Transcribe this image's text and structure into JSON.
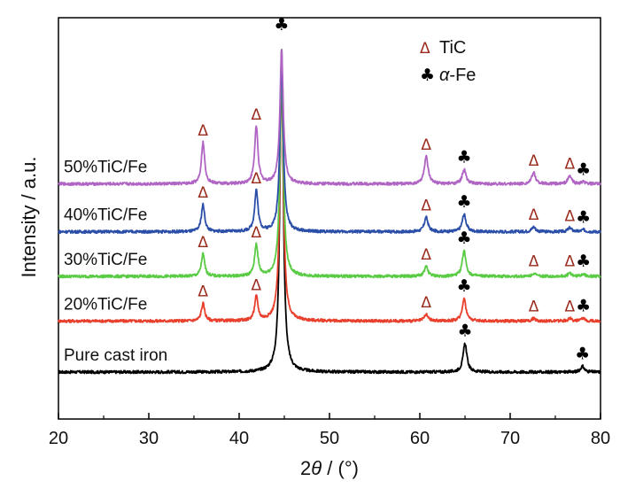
{
  "chart_data": {
    "type": "line",
    "xlabel_prefix": "2",
    "xlabel_theta": "θ",
    "xlabel_suffix": " / (°)",
    "ylabel": "Intensity / a.u.",
    "xlim": [
      20,
      80
    ],
    "xticks": [
      20,
      30,
      40,
      50,
      60,
      70,
      80
    ],
    "y_ticks_shown": false,
    "legend": {
      "position": "top-right",
      "items": [
        {
          "symbol": "Δ",
          "label": "TiC",
          "color": "#9a2a1c"
        },
        {
          "symbol": "♣",
          "label_italic": "α",
          "label_rest": "-Fe",
          "color": "#000000"
        }
      ]
    },
    "series": [
      {
        "name": "Pure cast iron",
        "color": "#000000",
        "baseline": 0,
        "peaks": [
          {
            "x": 44.7,
            "h": 10.2,
            "w": 0.22
          },
          {
            "x": 65.0,
            "h": 0.9,
            "w": 0.25
          },
          {
            "x": 78.0,
            "h": 0.18,
            "w": 0.25
          }
        ],
        "markers": [
          {
            "x": 65.0,
            "type": "club",
            "h": 0.9
          },
          {
            "x": 78.0,
            "type": "club",
            "h": 0.18
          }
        ]
      },
      {
        "name": "20%TiC/Fe",
        "color": "#e8402c",
        "baseline": 1.6,
        "peaks": [
          {
            "x": 36.0,
            "h": 0.55,
            "w": 0.22
          },
          {
            "x": 41.9,
            "h": 0.75,
            "w": 0.22
          },
          {
            "x": 44.7,
            "h": 8.0,
            "w": 0.22
          },
          {
            "x": 60.7,
            "h": 0.2,
            "w": 0.25
          },
          {
            "x": 64.9,
            "h": 0.7,
            "w": 0.25
          },
          {
            "x": 72.6,
            "h": 0.08,
            "w": 0.25
          },
          {
            "x": 76.6,
            "h": 0.08,
            "w": 0.25
          },
          {
            "x": 78.1,
            "h": 0.08,
            "w": 0.25
          }
        ],
        "markers": [
          {
            "x": 36.0,
            "type": "delta",
            "h": 0.55
          },
          {
            "x": 41.9,
            "type": "delta",
            "h": 0.75
          },
          {
            "x": 60.7,
            "type": "delta",
            "h": 0.2
          },
          {
            "x": 64.9,
            "type": "club",
            "h": 0.7
          },
          {
            "x": 72.6,
            "type": "delta",
            "h": 0.08
          },
          {
            "x": 76.6,
            "type": "delta",
            "h": 0.08
          },
          {
            "x": 78.1,
            "type": "club",
            "h": 0.08
          }
        ]
      },
      {
        "name": "30%TiC/Fe",
        "color": "#5acb45",
        "baseline": 3.0,
        "peaks": [
          {
            "x": 36.0,
            "h": 0.7,
            "w": 0.22
          },
          {
            "x": 41.9,
            "h": 1.0,
            "w": 0.22
          },
          {
            "x": 44.7,
            "h": 6.5,
            "w": 0.22
          },
          {
            "x": 60.7,
            "h": 0.3,
            "w": 0.25
          },
          {
            "x": 64.9,
            "h": 0.8,
            "w": 0.25
          },
          {
            "x": 72.6,
            "h": 0.1,
            "w": 0.25
          },
          {
            "x": 76.6,
            "h": 0.1,
            "w": 0.25
          },
          {
            "x": 78.1,
            "h": 0.08,
            "w": 0.25
          }
        ],
        "markers": [
          {
            "x": 36.0,
            "type": "delta",
            "h": 0.7
          },
          {
            "x": 41.9,
            "type": "delta",
            "h": 1.0
          },
          {
            "x": 60.7,
            "type": "delta",
            "h": 0.3
          },
          {
            "x": 64.9,
            "type": "club",
            "h": 0.8
          },
          {
            "x": 72.6,
            "type": "delta",
            "h": 0.1
          },
          {
            "x": 76.6,
            "type": "delta",
            "h": 0.1
          },
          {
            "x": 78.1,
            "type": "club",
            "h": 0.08
          }
        ]
      },
      {
        "name": "40%TiC/Fe",
        "color": "#2b4ea8",
        "baseline": 4.4,
        "peaks": [
          {
            "x": 36.0,
            "h": 0.85,
            "w": 0.22
          },
          {
            "x": 41.9,
            "h": 1.3,
            "w": 0.22
          },
          {
            "x": 44.7,
            "h": 5.4,
            "w": 0.22
          },
          {
            "x": 60.7,
            "h": 0.45,
            "w": 0.25
          },
          {
            "x": 64.9,
            "h": 0.55,
            "w": 0.25
          },
          {
            "x": 72.6,
            "h": 0.15,
            "w": 0.25
          },
          {
            "x": 76.6,
            "h": 0.12,
            "w": 0.25
          },
          {
            "x": 78.1,
            "h": 0.06,
            "w": 0.25
          }
        ],
        "markers": [
          {
            "x": 36.0,
            "type": "delta",
            "h": 0.85
          },
          {
            "x": 41.9,
            "type": "delta",
            "h": 1.3
          },
          {
            "x": 60.7,
            "type": "delta",
            "h": 0.45
          },
          {
            "x": 64.9,
            "type": "club",
            "h": 0.55
          },
          {
            "x": 72.6,
            "type": "delta",
            "h": 0.15
          },
          {
            "x": 76.6,
            "type": "delta",
            "h": 0.12
          },
          {
            "x": 78.1,
            "type": "club",
            "h": 0.06
          }
        ]
      },
      {
        "name": "50%TiC/Fe",
        "color": "#b065c4",
        "baseline": 5.9,
        "peaks": [
          {
            "x": 36.0,
            "h": 1.3,
            "w": 0.22
          },
          {
            "x": 41.9,
            "h": 1.8,
            "w": 0.22
          },
          {
            "x": 44.7,
            "h": 4.2,
            "w": 0.22
          },
          {
            "x": 60.7,
            "h": 0.85,
            "w": 0.25
          },
          {
            "x": 64.9,
            "h": 0.45,
            "w": 0.25
          },
          {
            "x": 72.6,
            "h": 0.35,
            "w": 0.25
          },
          {
            "x": 76.6,
            "h": 0.25,
            "w": 0.25
          },
          {
            "x": 78.1,
            "h": 0.06,
            "w": 0.25
          }
        ],
        "markers": [
          {
            "x": 36.0,
            "type": "delta",
            "h": 1.3
          },
          {
            "x": 41.9,
            "type": "delta",
            "h": 1.8
          },
          {
            "x": 60.7,
            "type": "delta",
            "h": 0.85
          },
          {
            "x": 64.9,
            "type": "club",
            "h": 0.45
          },
          {
            "x": 72.6,
            "type": "delta",
            "h": 0.35
          },
          {
            "x": 76.6,
            "type": "delta",
            "h": 0.25
          },
          {
            "x": 78.1,
            "type": "club",
            "h": 0.06
          }
        ]
      }
    ],
    "top_marker": {
      "x": 44.7,
      "symbol": "♣"
    },
    "marker_symbols": {
      "delta": "Δ",
      "club": "♣"
    }
  }
}
